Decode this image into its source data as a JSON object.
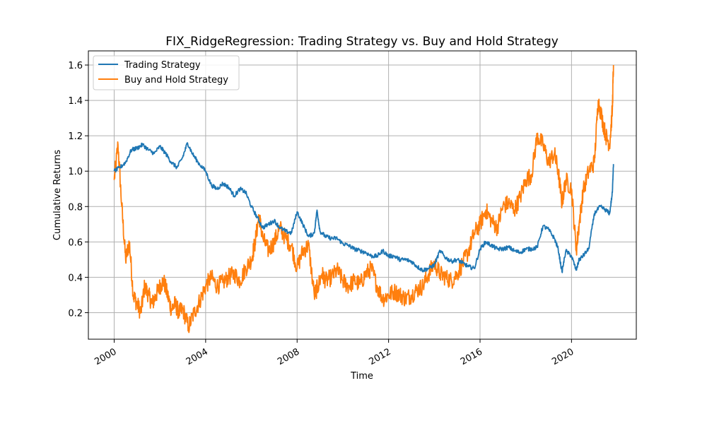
{
  "chart_data": {
    "type": "line",
    "title": "FIX_RidgeRegression: Trading Strategy vs. Buy and Hold Strategy",
    "xlabel": "Time",
    "ylabel": "Cumulative Returns",
    "xlim": [
      "1998-11-15",
      "2022-11-01"
    ],
    "ylim": [
      0.05,
      1.68
    ],
    "x_ticks": [
      "2000",
      "2004",
      "2008",
      "2012",
      "2016",
      "2020"
    ],
    "y_ticks": [
      "0.2",
      "0.4",
      "0.6",
      "0.8",
      "1.0",
      "1.2",
      "1.4",
      "1.6"
    ],
    "grid": true,
    "legend_position": "upper-left",
    "series": [
      {
        "name": "Trading Strategy",
        "color": "#1f77b4",
        "x": [
          "2000-01-01",
          "2000-04-01",
          "2000-07-01",
          "2000-10-01",
          "2001-01-01",
          "2001-04-01",
          "2001-07-01",
          "2001-10-01",
          "2002-01-01",
          "2002-04-01",
          "2002-07-01",
          "2002-10-01",
          "2003-01-01",
          "2003-03-15",
          "2003-06-01",
          "2003-09-01",
          "2004-01-01",
          "2004-04-01",
          "2004-07-01",
          "2004-10-01",
          "2005-01-01",
          "2005-04-01",
          "2005-07-01",
          "2005-10-01",
          "2006-01-01",
          "2006-04-01",
          "2006-07-01",
          "2006-10-01",
          "2007-01-01",
          "2007-04-01",
          "2007-07-01",
          "2007-10-01",
          "2008-01-01",
          "2008-04-01",
          "2008-07-01",
          "2008-10-01",
          "2008-11-15",
          "2009-01-01",
          "2009-04-01",
          "2009-07-01",
          "2009-10-01",
          "2010-01-01",
          "2010-04-01",
          "2010-07-01",
          "2010-10-01",
          "2011-01-01",
          "2011-04-01",
          "2011-07-01",
          "2011-10-01",
          "2012-01-01",
          "2012-04-01",
          "2012-07-01",
          "2012-10-01",
          "2013-01-01",
          "2013-04-01",
          "2013-07-01",
          "2013-10-01",
          "2014-01-01",
          "2014-04-01",
          "2014-07-01",
          "2014-10-01",
          "2015-01-01",
          "2015-04-01",
          "2015-07-01",
          "2015-10-01",
          "2016-01-01",
          "2016-04-01",
          "2016-07-01",
          "2016-10-01",
          "2017-01-01",
          "2017-04-01",
          "2017-07-01",
          "2017-10-01",
          "2018-01-01",
          "2018-04-01",
          "2018-07-01",
          "2018-10-01",
          "2019-01-01",
          "2019-04-01",
          "2019-06-01",
          "2019-08-01",
          "2019-10-01",
          "2020-01-01",
          "2020-03-15",
          "2020-05-01",
          "2020-07-01",
          "2020-10-01",
          "2021-01-01",
          "2021-04-01",
          "2021-07-01",
          "2021-09-01",
          "2021-10-15",
          "2021-11-01"
        ],
        "values": [
          1.0,
          1.02,
          1.05,
          1.12,
          1.13,
          1.15,
          1.12,
          1.1,
          1.14,
          1.1,
          1.05,
          1.02,
          1.08,
          1.16,
          1.1,
          1.05,
          1.0,
          0.92,
          0.9,
          0.93,
          0.91,
          0.86,
          0.9,
          0.88,
          0.8,
          0.74,
          0.68,
          0.7,
          0.72,
          0.68,
          0.66,
          0.65,
          0.77,
          0.7,
          0.63,
          0.65,
          0.78,
          0.66,
          0.63,
          0.62,
          0.62,
          0.59,
          0.58,
          0.56,
          0.55,
          0.54,
          0.52,
          0.52,
          0.55,
          0.52,
          0.52,
          0.5,
          0.5,
          0.49,
          0.46,
          0.44,
          0.45,
          0.47,
          0.55,
          0.51,
          0.49,
          0.5,
          0.48,
          0.46,
          0.45,
          0.56,
          0.6,
          0.58,
          0.56,
          0.56,
          0.57,
          0.55,
          0.54,
          0.56,
          0.56,
          0.57,
          0.69,
          0.67,
          0.62,
          0.56,
          0.43,
          0.55,
          0.52,
          0.44,
          0.5,
          0.52,
          0.56,
          0.76,
          0.8,
          0.78,
          0.76,
          0.88,
          1.04
        ]
      },
      {
        "name": "Buy and Hold Strategy",
        "color": "#ff7f0e",
        "x": [
          "2000-01-01",
          "2000-03-01",
          "2000-05-01",
          "2000-07-01",
          "2000-09-01",
          "2000-11-01",
          "2001-01-01",
          "2001-03-01",
          "2001-05-01",
          "2001-07-01",
          "2001-09-01",
          "2001-11-01",
          "2002-01-01",
          "2002-03-01",
          "2002-05-01",
          "2002-07-01",
          "2002-09-01",
          "2002-11-01",
          "2003-01-01",
          "2003-04-01",
          "2003-07-01",
          "2003-10-01",
          "2004-01-01",
          "2004-04-01",
          "2004-07-01",
          "2004-10-01",
          "2005-01-01",
          "2005-04-01",
          "2005-07-01",
          "2005-10-01",
          "2006-01-01",
          "2006-03-01",
          "2006-05-01",
          "2006-07-01",
          "2006-10-01",
          "2007-01-01",
          "2007-04-01",
          "2007-07-01",
          "2007-10-01",
          "2008-01-01",
          "2008-04-01",
          "2008-07-01",
          "2008-10-01",
          "2008-12-01",
          "2009-02-01",
          "2009-04-01",
          "2009-07-01",
          "2009-10-01",
          "2010-01-01",
          "2010-04-01",
          "2010-07-01",
          "2010-10-01",
          "2011-01-01",
          "2011-04-01",
          "2011-07-01",
          "2011-10-01",
          "2012-01-01",
          "2012-04-01",
          "2012-07-01",
          "2012-10-01",
          "2013-01-01",
          "2013-04-01",
          "2013-07-01",
          "2013-10-01",
          "2014-01-01",
          "2014-04-01",
          "2014-07-01",
          "2014-10-01",
          "2015-01-01",
          "2015-04-01",
          "2015-07-01",
          "2015-10-01",
          "2016-01-01",
          "2016-04-01",
          "2016-07-01",
          "2016-10-01",
          "2017-01-01",
          "2017-04-01",
          "2017-07-01",
          "2017-10-01",
          "2018-01-01",
          "2018-04-01",
          "2018-07-01",
          "2018-10-01",
          "2019-01-01",
          "2019-04-01",
          "2019-06-01",
          "2019-08-01",
          "2019-10-01",
          "2020-01-01",
          "2020-03-15",
          "2020-05-01",
          "2020-07-01",
          "2020-10-01",
          "2021-01-01",
          "2021-03-01",
          "2021-05-01",
          "2021-07-01",
          "2021-09-01",
          "2021-10-15",
          "2021-11-01"
        ],
        "values": [
          0.95,
          1.15,
          0.8,
          0.5,
          0.6,
          0.3,
          0.25,
          0.2,
          0.35,
          0.3,
          0.25,
          0.3,
          0.35,
          0.38,
          0.3,
          0.22,
          0.25,
          0.2,
          0.22,
          0.12,
          0.2,
          0.27,
          0.35,
          0.4,
          0.35,
          0.37,
          0.4,
          0.42,
          0.38,
          0.45,
          0.5,
          0.6,
          0.75,
          0.62,
          0.55,
          0.6,
          0.68,
          0.62,
          0.58,
          0.45,
          0.55,
          0.58,
          0.3,
          0.35,
          0.42,
          0.38,
          0.4,
          0.44,
          0.38,
          0.35,
          0.38,
          0.36,
          0.42,
          0.45,
          0.35,
          0.28,
          0.3,
          0.32,
          0.3,
          0.28,
          0.3,
          0.33,
          0.35,
          0.42,
          0.48,
          0.42,
          0.4,
          0.38,
          0.42,
          0.48,
          0.55,
          0.65,
          0.7,
          0.78,
          0.72,
          0.68,
          0.8,
          0.82,
          0.78,
          0.85,
          0.95,
          0.98,
          1.2,
          1.15,
          1.05,
          1.1,
          1.0,
          0.82,
          0.95,
          0.9,
          0.55,
          0.7,
          0.88,
          1.0,
          1.05,
          1.4,
          1.3,
          1.2,
          1.15,
          1.35,
          1.6
        ]
      }
    ]
  }
}
